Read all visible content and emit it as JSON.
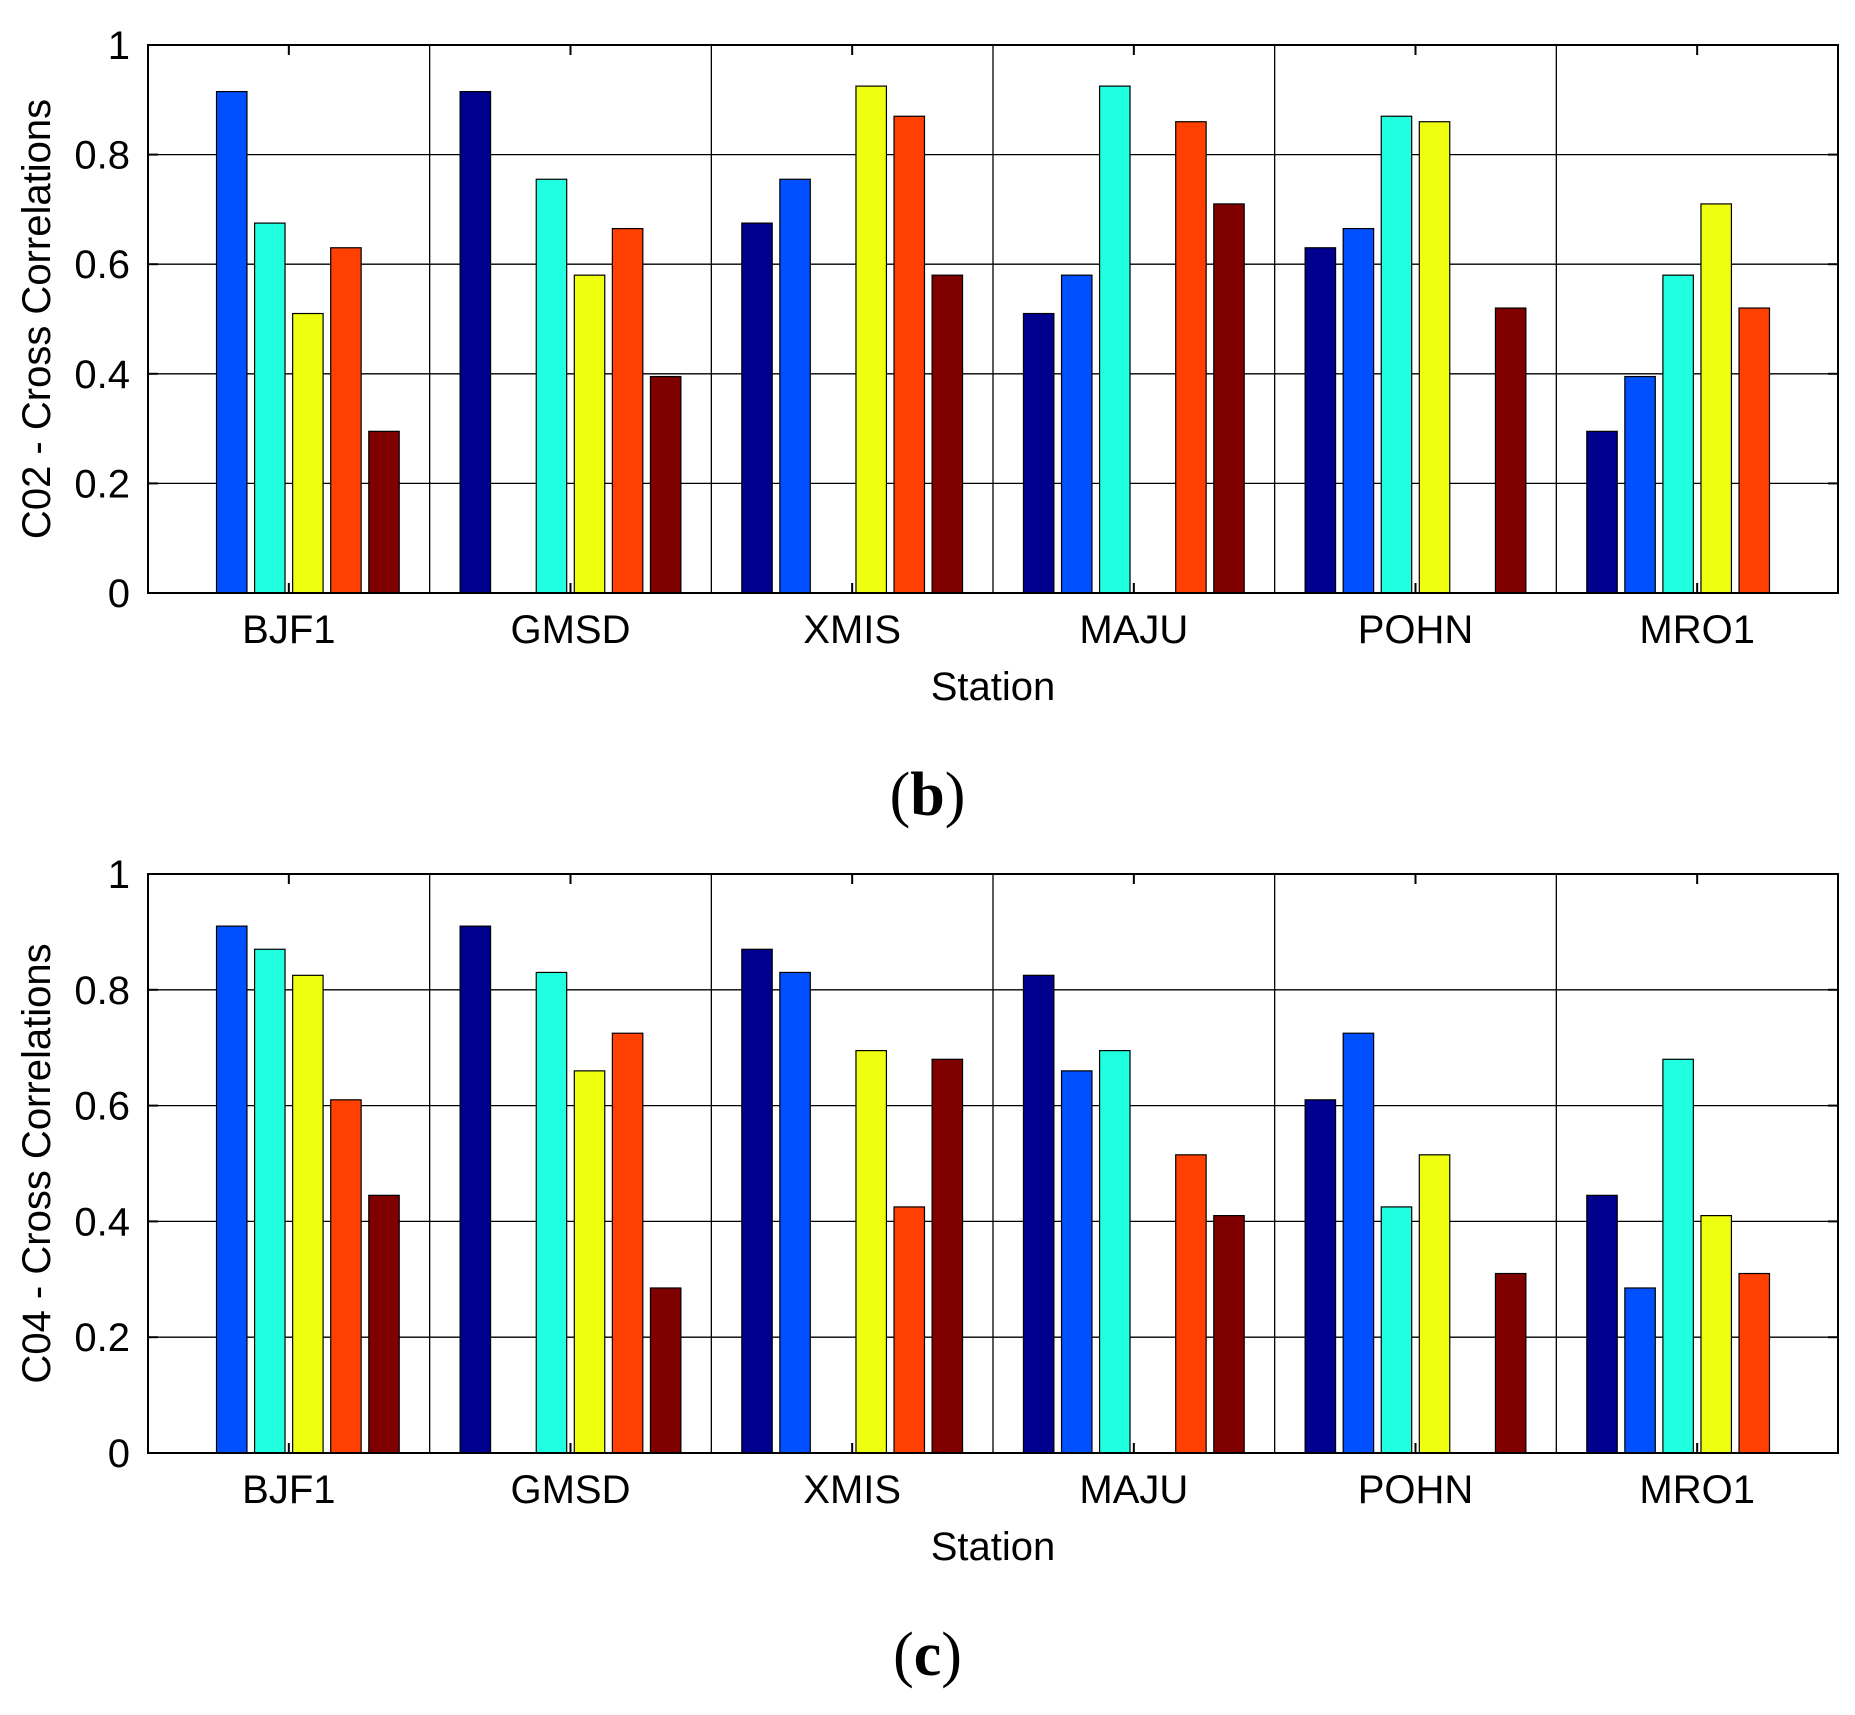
{
  "chart_data": [
    {
      "id": "b",
      "type": "bar",
      "caption_open": "(",
      "caption_letter": "b",
      "caption_close": ")",
      "xlabel": "Station",
      "ylabel": "C02 - Cross Correlations",
      "ylim": [
        0,
        1
      ],
      "yticks": [
        "0",
        "0.2",
        "0.4",
        "0.6",
        "0.8",
        "1"
      ],
      "grid": true,
      "categories": [
        "BJF1",
        "GMSD",
        "XMIS",
        "MAJU",
        "POHN",
        "MRO1"
      ],
      "series": [
        {
          "name": "BJF1",
          "color": "#00008f",
          "values": [
            null,
            0.915,
            0.675,
            0.51,
            0.63,
            0.295
          ]
        },
        {
          "name": "GMSD",
          "color": "#0050ff",
          "values": [
            0.915,
            null,
            0.755,
            0.58,
            0.665,
            0.395
          ]
        },
        {
          "name": "XMIS",
          "color": "#20ffdf",
          "values": [
            0.675,
            0.755,
            null,
            0.925,
            0.87,
            0.58
          ]
        },
        {
          "name": "MAJU",
          "color": "#efff10",
          "values": [
            0.51,
            0.58,
            0.925,
            null,
            0.86,
            0.71
          ]
        },
        {
          "name": "POHN",
          "color": "#ff4000",
          "values": [
            0.63,
            0.665,
            0.87,
            0.86,
            null,
            0.52
          ]
        },
        {
          "name": "MRO1",
          "color": "#800000",
          "values": [
            0.295,
            0.395,
            0.58,
            0.71,
            0.52,
            null
          ]
        }
      ]
    },
    {
      "id": "c",
      "type": "bar",
      "caption_open": "(",
      "caption_letter": "c",
      "caption_close": ")",
      "xlabel": "Station",
      "ylabel": "C04 - Cross Correlations",
      "ylim": [
        0,
        1
      ],
      "yticks": [
        "0",
        "0.2",
        "0.4",
        "0.6",
        "0.8",
        "1"
      ],
      "grid": true,
      "categories": [
        "BJF1",
        "GMSD",
        "XMIS",
        "MAJU",
        "POHN",
        "MRO1"
      ],
      "series": [
        {
          "name": "BJF1",
          "color": "#00008f",
          "values": [
            null,
            0.91,
            0.87,
            0.825,
            0.61,
            0.445
          ]
        },
        {
          "name": "GMSD",
          "color": "#0050ff",
          "values": [
            0.91,
            null,
            0.83,
            0.66,
            0.725,
            0.285
          ]
        },
        {
          "name": "XMIS",
          "color": "#20ffdf",
          "values": [
            0.87,
            0.83,
            null,
            0.695,
            0.425,
            0.68
          ]
        },
        {
          "name": "MAJU",
          "color": "#efff10",
          "values": [
            0.825,
            0.66,
            0.695,
            null,
            0.515,
            0.41
          ]
        },
        {
          "name": "POHN",
          "color": "#ff4000",
          "values": [
            0.61,
            0.725,
            0.425,
            0.515,
            null,
            0.31
          ]
        },
        {
          "name": "MRO1",
          "color": "#800000",
          "values": [
            0.445,
            0.285,
            0.68,
            0.41,
            0.31,
            null
          ]
        }
      ]
    }
  ]
}
